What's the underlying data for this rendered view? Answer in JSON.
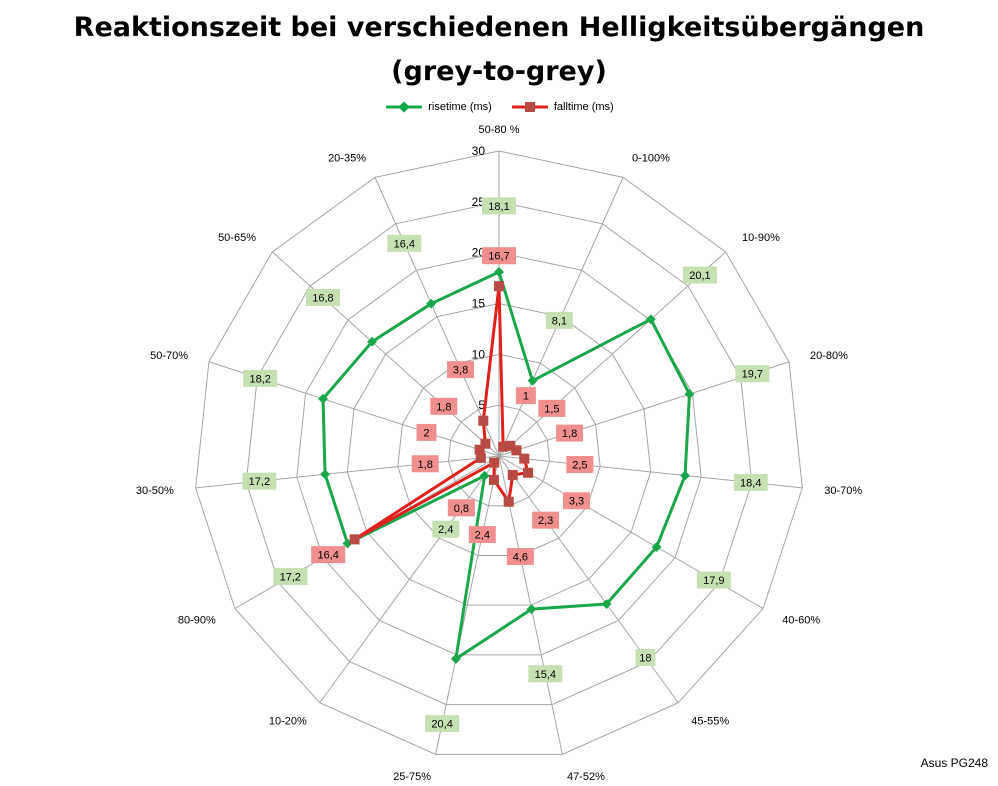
{
  "chart_data": {
    "type": "radar",
    "title": "Reaktionszeit bei verschiedenen Helligkeitsübergängen",
    "subtitle": "(grey-to-grey)",
    "categories": [
      "50-80 %",
      "0-100%",
      "10-90%",
      "20-80%",
      "30-70%",
      "40-60%",
      "45-55%",
      "47-52%",
      "25-75%",
      "10-20%",
      "80-90%",
      "30-50%",
      "50-70%",
      "50-65%",
      "20-35%"
    ],
    "rlim": [
      0,
      30
    ],
    "rticks": [
      "0",
      "5",
      "10",
      "15",
      "20",
      "25",
      "30"
    ],
    "grid": true,
    "legend_position": "top",
    "series": [
      {
        "name": "risetime (ms)",
        "color": "#1aa64a",
        "label_bg": "#c6e0b4",
        "values": [
          18.1,
          8.1,
          20.1,
          19.7,
          18.4,
          17.9,
          18,
          15.4,
          20.4,
          2.4,
          17.2,
          17.2,
          18.2,
          16.8,
          16.4
        ],
        "labels": [
          "18,1",
          "8,1",
          "20,1",
          "19,7",
          "18,4",
          "17,9",
          "18",
          "15,4",
          "20,4",
          "2,4",
          "17,2",
          "17,2",
          "18,2",
          "16,8",
          "16,4"
        ]
      },
      {
        "name": "falltime (ms)",
        "color": "#e0201c",
        "label_bg": "#f08f8f",
        "values": [
          16.7,
          1,
          1.5,
          1.8,
          2.5,
          3.3,
          2.3,
          4.6,
          2.4,
          0.8,
          16.4,
          1.8,
          2,
          1.8,
          3.8
        ],
        "labels": [
          "16,7",
          "1",
          "1,5",
          "1,8",
          "2,5",
          "3,3",
          "2,3",
          "4,6",
          "2,4",
          "0,8",
          "16,4",
          "1,8",
          "2",
          "1,8",
          "3,8"
        ]
      }
    ]
  },
  "credit": "Asus PG248"
}
